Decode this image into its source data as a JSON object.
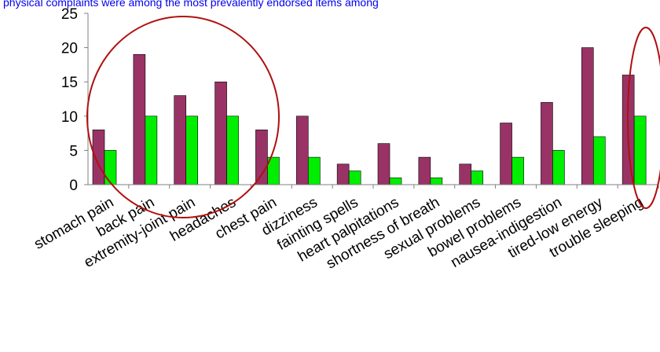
{
  "caption_fragment": "physical complaints were among the most prevalently endorsed items among",
  "chart_data": {
    "type": "bar",
    "categories": [
      "stomach pain",
      "back pain",
      "extremity-joint pain",
      "headaches",
      "chest pain",
      "dizziness",
      "fainting spells",
      "heart palpitations",
      "shortness of breath",
      "sexual problems",
      "bowel problems",
      "nausea-indigestion",
      "tired-low energy",
      "trouble sleeping"
    ],
    "series": [
      {
        "values": [
          8,
          19,
          13,
          15,
          8,
          10,
          3,
          6,
          4,
          3,
          9,
          12,
          20,
          16
        ],
        "color": "#993366"
      },
      {
        "values": [
          5,
          10,
          10,
          10,
          4,
          4,
          2,
          1,
          1,
          2,
          4,
          5,
          7,
          10
        ],
        "color": "#00ee00"
      }
    ],
    "ylim": [
      0,
      25
    ],
    "yticks": [
      0,
      5,
      10,
      15,
      20,
      25
    ],
    "grid": false,
    "legend": "none",
    "annotation_color": "#b01010"
  }
}
